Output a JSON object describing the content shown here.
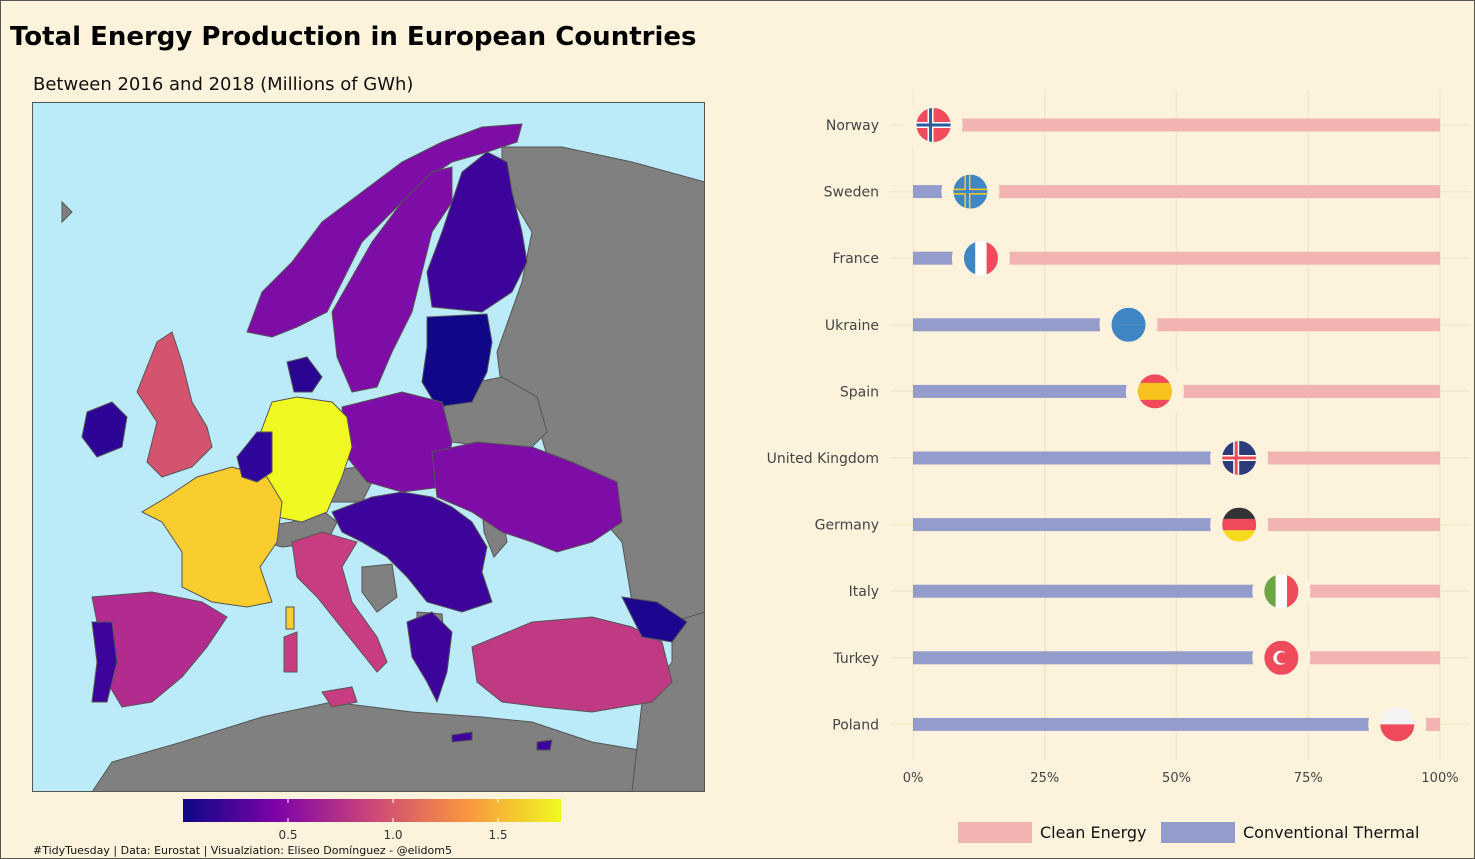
{
  "title": "Total Energy Production in European Countries",
  "subtitle": "Between 2016 and 2018 (Millions of GWh)",
  "caption": "#TidyTuesday | Data: Eurostat | Visualziation: Eliseo Domínguez - @elidom5",
  "colors": {
    "background": "#fdf3dc",
    "sea": "#bbeaf9",
    "no_data_land": "#808080",
    "clean_energy": "#f1b4b3",
    "conventional_thermal": "#949ccb",
    "gridline": "#f3e7cc"
  },
  "map_colorbar": {
    "palette": "plasma",
    "ticks": [
      "0.5",
      "1.0",
      "1.5"
    ],
    "tick_values": [
      0.5,
      1.0,
      1.5
    ],
    "range": [
      0.0,
      1.8
    ]
  },
  "chart_data": {
    "type": "bar",
    "orientation": "horizontal stacked percentage",
    "categories": [
      "Norway",
      "Sweden",
      "France",
      "Ukraine",
      "Spain",
      "United Kingdom",
      "Germany",
      "Italy",
      "Turkey",
      "Poland"
    ],
    "series": [
      {
        "name": "Conventional Thermal",
        "values": [
          2,
          9,
          11,
          39,
          44,
          60,
          60,
          68,
          68,
          90
        ]
      },
      {
        "name": "Clean Energy",
        "values": [
          98,
          91,
          89,
          61,
          56,
          40,
          40,
          32,
          32,
          10
        ]
      }
    ],
    "flag_icons": [
      "norway-flag-icon",
      "sweden-flag-icon",
      "france-flag-icon",
      "ukraine-flag-icon",
      "spain-flag-icon",
      "united-kingdom-flag-icon",
      "germany-flag-icon",
      "italy-flag-icon",
      "turkey-flag-icon",
      "poland-flag-icon"
    ],
    "x_ticks": [
      "0%",
      "25%",
      "50%",
      "75%",
      "100%"
    ],
    "x_tick_values": [
      0,
      25,
      50,
      75,
      100
    ],
    "xlim": [
      0,
      100
    ],
    "grid": true,
    "legend_position": "bottom"
  },
  "legend": {
    "items": [
      {
        "label": "Clean Energy",
        "color": "#f1b4b3"
      },
      {
        "label": "Conventional Thermal",
        "color": "#949ccb"
      }
    ]
  }
}
